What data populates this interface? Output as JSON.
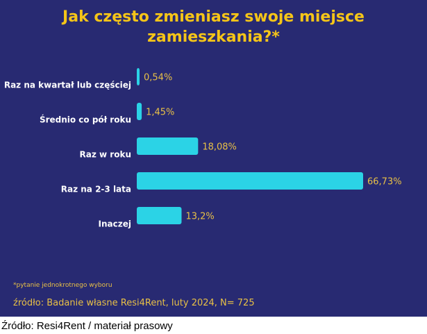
{
  "colors": {
    "background": "#282a72",
    "bar": "#2bd3e6",
    "title": "#f5c518",
    "value_label": "#e8c046",
    "category_label": "#ffffff"
  },
  "chart_data": {
    "type": "bar",
    "orientation": "horizontal",
    "title_lines": [
      "Jak często zmieniasz swoje miejsce",
      "zamieszkania?*"
    ],
    "categories": [
      "Raz na kwartał lub częściej",
      "Średnio co pół roku",
      "Raz w roku",
      "Raz na 2-3 lata",
      "Inaczej"
    ],
    "values": [
      0.54,
      1.45,
      18.08,
      66.73,
      13.2
    ],
    "value_labels": [
      "0,54%",
      "1,45%",
      "18,08%",
      "66,73%",
      "13,2%"
    ],
    "xlim": [
      0,
      66.73
    ],
    "grid": false,
    "legend": "none"
  },
  "footnote": "*pytanie jednokrotnego wyboru",
  "source_inner": "źródło: Badanie własne Resi4Rent, luty 2024, N= 725",
  "caption": "Źródło: Resi4Rent / materiał prasowy"
}
